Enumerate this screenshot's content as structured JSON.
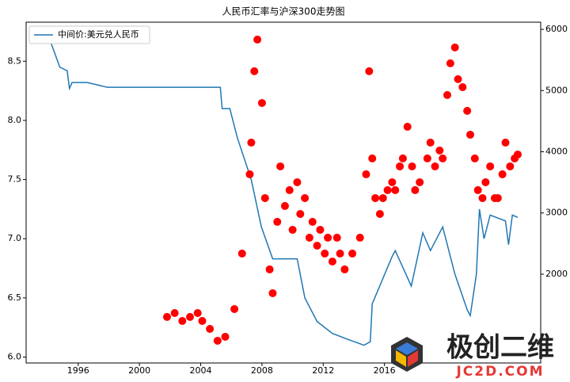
{
  "chart_data": {
    "type": "line",
    "title": "人民币汇率与沪深300走势图",
    "xlim": [
      1992.6,
      2026.2
    ],
    "xticks": [
      1996,
      2000,
      2004,
      2008,
      2012,
      2016
    ],
    "ylim": [
      5.95,
      8.83
    ],
    "yticks": [
      {
        "value": 6.0,
        "label": "6.0"
      },
      6.5,
      {
        "value": 7.0,
        "label": "7.0"
      },
      7.5,
      {
        "value": 8.0,
        "label": "8.0"
      },
      8.5
    ],
    "y2lim": [
      549,
      6117
    ],
    "y2ticks": [
      2000,
      3000,
      4000,
      5000,
      6000
    ],
    "legend": "upper left",
    "series": [
      {
        "name": "中间价:美元兑人民币",
        "color": "#1f77b4",
        "type": "line",
        "x": [
          1994.04,
          1994.8,
          1995.28,
          1995.43,
          1995.6,
          1996.6,
          1997.9,
          2005.28,
          2005.4,
          2005.9,
          2006.4,
          2007.3,
          2007.96,
          2008.7,
          2010.3,
          2010.8,
          2011.6,
          2012.6,
          2013.6,
          2014.66,
          2015.07,
          2015.2,
          2016.5,
          2016.7,
          2017.75,
          2018.5,
          2019.0,
          2019.8,
          2020.6,
          2021.4,
          2021.6,
          2022.0,
          2022.2,
          2022.5,
          2022.9,
          2023.9,
          2024.1,
          2024.35,
          2024.7
        ],
        "values": [
          8.72,
          8.45,
          8.42,
          8.27,
          8.32,
          8.32,
          8.28,
          8.28,
          8.1,
          8.1,
          7.85,
          7.5,
          7.1,
          6.83,
          6.83,
          6.5,
          6.3,
          6.2,
          6.15,
          6.1,
          6.13,
          6.45,
          6.85,
          6.9,
          6.6,
          7.05,
          6.9,
          7.1,
          6.7,
          6.4,
          6.35,
          6.7,
          7.25,
          7.0,
          7.2,
          7.15,
          6.95,
          7.2,
          7.18
        ]
      },
      {
        "color": "#ff0000",
        "type": "scatter",
        "axis": "y2",
        "x": [
          2001.8,
          2002.3,
          2002.8,
          2003.3,
          2003.8,
          2004.1,
          2004.6,
          2005.1,
          2005.6,
          2006.2,
          2006.7,
          2007.2,
          2007.3,
          2007.5,
          2007.7,
          2008.0,
          2008.2,
          2008.5,
          2008.7,
          2009.0,
          2009.2,
          2009.5,
          2009.8,
          2010.0,
          2010.3,
          2010.5,
          2010.8,
          2011.1,
          2011.3,
          2011.6,
          2011.8,
          2012.1,
          2012.3,
          2012.6,
          2012.9,
          2013.1,
          2013.4,
          2013.9,
          2014.4,
          2014.8,
          2015.0,
          2015.2,
          2015.4,
          2015.7,
          2015.9,
          2016.2,
          2016.5,
          2016.7,
          2017.0,
          2017.2,
          2017.5,
          2017.8,
          2018.0,
          2018.3,
          2018.8,
          2019.0,
          2019.3,
          2019.6,
          2019.8,
          2020.1,
          2020.3,
          2020.6,
          2020.8,
          2021.1,
          2021.4,
          2021.6,
          2021.9,
          2022.1,
          2022.4,
          2022.6,
          2022.9,
          2023.2,
          2023.4,
          2023.7,
          2023.9,
          2024.2,
          2024.5,
          2024.7
        ],
        "values": [
          1301,
          1365,
          1236,
          1301,
          1365,
          1236,
          1106,
          912,
          977,
          1430,
          2337,
          3632,
          4150,
          5316,
          5833,
          4797,
          3243,
          2078,
          1689,
          2855,
          3761,
          3114,
          3373,
          2725,
          3502,
          2984,
          3243,
          2596,
          2855,
          2466,
          2725,
          2337,
          2596,
          2207,
          2596,
          2337,
          2078,
          2337,
          2596,
          3632,
          5316,
          3891,
          3243,
          2984,
          3243,
          3373,
          3502,
          3373,
          3761,
          3891,
          4409,
          3761,
          3373,
          3502,
          3891,
          4150,
          3761,
          4021,
          3891,
          4927,
          5445,
          5704,
          5186,
          5056,
          4668,
          4279,
          3891,
          3373,
          3243,
          3502,
          3761,
          3243,
          3243,
          3632,
          4150,
          3761,
          3891,
          3955
        ]
      }
    ]
  },
  "watermark": [
    "极创二维",
    "JC2D.COM"
  ]
}
